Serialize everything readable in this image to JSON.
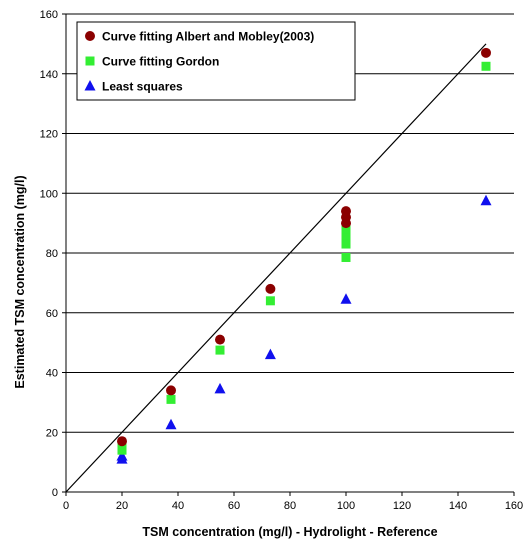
{
  "chart_data": {
    "type": "scatter",
    "xlabel": "TSM concentration (mg/l) - Hydrolight - Reference",
    "ylabel": "Estimated TSM concentration (mg/l)",
    "xlim": [
      0,
      160
    ],
    "ylim": [
      0,
      160
    ],
    "xticks": [
      0,
      20,
      40,
      60,
      80,
      100,
      120,
      140,
      160
    ],
    "yticks": [
      0,
      20,
      40,
      60,
      80,
      100,
      120,
      140,
      160
    ],
    "grid": "horizontal",
    "legend_position": "top-left",
    "reference_line": {
      "from": [
        0,
        0
      ],
      "to": [
        150,
        150
      ],
      "color": "#000000"
    },
    "series": [
      {
        "name": "Curve fitting Albert and Mobley(2003)",
        "marker": "circle",
        "color": "#8b0000",
        "points": [
          [
            20,
            17
          ],
          [
            37.5,
            34
          ],
          [
            55,
            51
          ],
          [
            73,
            68
          ],
          [
            100,
            94
          ],
          [
            100,
            92
          ],
          [
            100,
            90
          ],
          [
            150,
            147
          ]
        ]
      },
      {
        "name": "Curve fitting Gordon",
        "marker": "square",
        "color": "#33ee33",
        "points": [
          [
            20,
            15
          ],
          [
            20,
            14
          ],
          [
            37.5,
            31
          ],
          [
            55,
            47.5
          ],
          [
            73,
            64
          ],
          [
            100,
            89
          ],
          [
            100,
            87
          ],
          [
            100,
            85
          ],
          [
            100,
            83
          ],
          [
            100,
            78.5
          ],
          [
            150,
            142.5
          ]
        ]
      },
      {
        "name": "Least squares",
        "marker": "triangle",
        "color": "#1010ee",
        "points": [
          [
            20,
            12
          ],
          [
            20,
            11
          ],
          [
            37.5,
            22.5
          ],
          [
            55,
            34.5
          ],
          [
            73,
            46
          ],
          [
            100,
            64.5
          ],
          [
            150,
            97.5
          ]
        ]
      }
    ]
  }
}
